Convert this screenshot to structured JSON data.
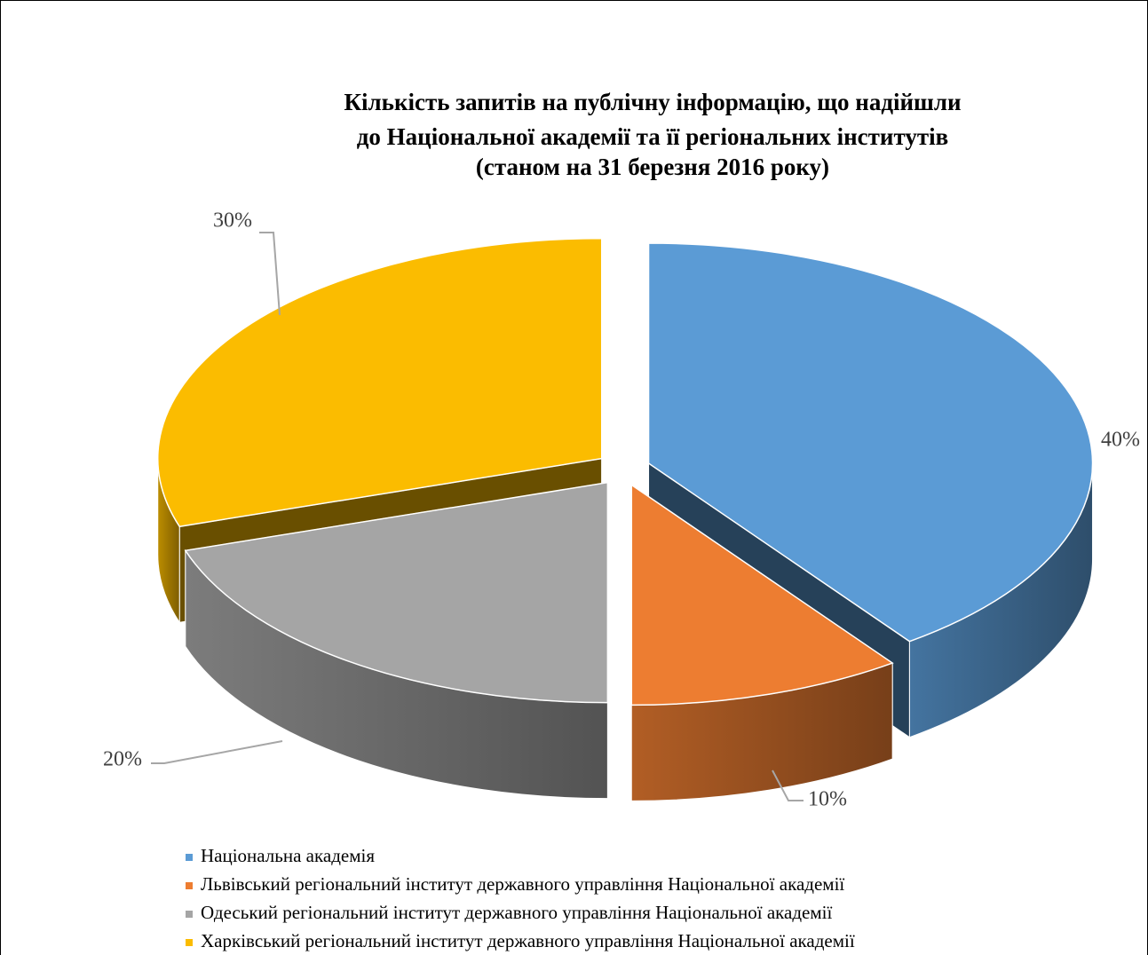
{
  "chart_data": {
    "type": "pie3d",
    "title": [
      "Кількість запитів на публічну інформацію, що надійшли",
      "до Національної  академії та її регіональних  інститутів",
      "(станом на 31 березня 2016 року)"
    ],
    "categories": [
      "Національна академія",
      "Львівський регіональний інститут державного управління Національної академії",
      "Одеський регіональний інститут державного управління  Національної академії",
      "Харківський регіональний інститут державного управління Національної академії"
    ],
    "values": [
      40,
      10,
      20,
      30
    ],
    "value_labels": [
      "40%",
      "10%",
      "20%",
      "30%"
    ],
    "colors": [
      "#5b9bd5",
      "#ed7d31",
      "#a5a5a5",
      "#fbbc00"
    ],
    "legend": "bottom-left"
  }
}
